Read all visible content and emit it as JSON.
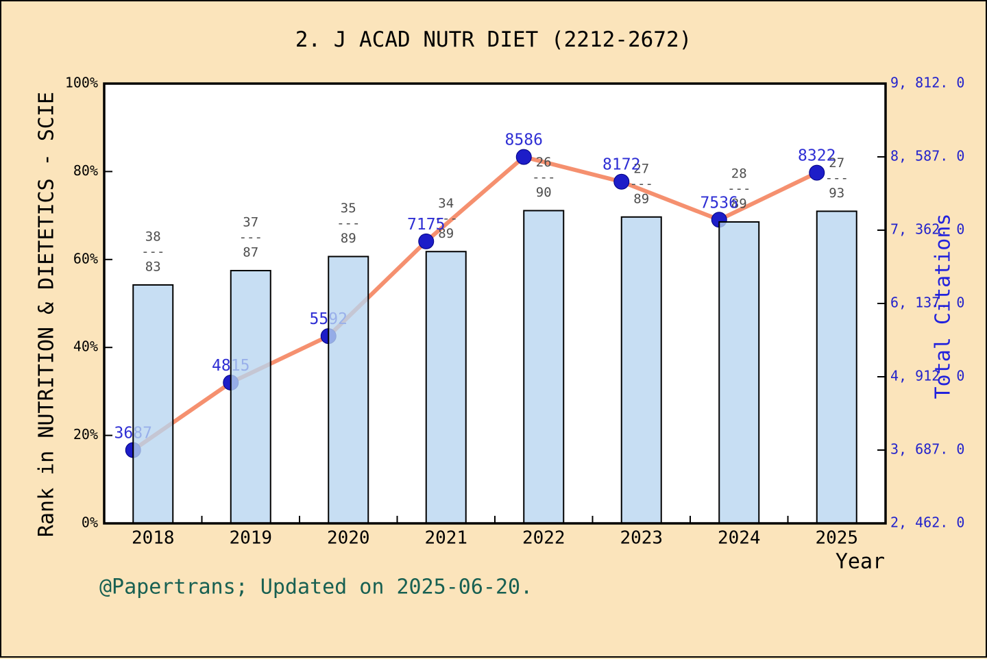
{
  "title": "2. J ACAD NUTR DIET (2212-2672)",
  "footer": "@Papertrans; Updated on 2025-06-20.",
  "colors": {
    "background": "#FBE4BB",
    "plot_background": "#FFFFFF",
    "bar_fill_solid": "#C9E0F4",
    "bar_fill_rgba": "rgba(183,213,240,0.78)",
    "bar_border": "#000000",
    "line": "#F5906F",
    "marker": "#1D1DC8",
    "value_label": "#2E2ED4",
    "fraction_label": "#4D4D4D",
    "right_axis_text": "#2222CC",
    "footer_text": "#186052"
  },
  "chart_data": {
    "type": "bar",
    "title": "2. J ACAD NUTR DIET (2212-2672)",
    "xlabel": "Year",
    "categories": [
      "2018",
      "2019",
      "2020",
      "2021",
      "2022",
      "2023",
      "2024",
      "2025"
    ],
    "series": [
      {
        "name": "Rank in NUTRITION & DIETETICS - SCIE",
        "type": "bar",
        "axis": "left",
        "rank": [
          38,
          37,
          35,
          34,
          26,
          27,
          28,
          27
        ],
        "total_in_category": [
          83,
          87,
          89,
          89,
          90,
          89,
          89,
          93
        ],
        "fraction_labels": [
          "38/83",
          "37/87",
          "35/89",
          "34/89",
          "26/90",
          "27/89",
          "28/89",
          "27/93"
        ],
        "fraction_separator": "---",
        "bar_height_pct": [
          54.2,
          57.5,
          60.7,
          61.8,
          71.1,
          69.7,
          68.5,
          71.0
        ]
      },
      {
        "name": "Total Citations",
        "type": "line",
        "axis": "right",
        "values": [
          3687,
          4815,
          5592,
          7175,
          8586,
          8172,
          7536,
          8322
        ]
      }
    ],
    "left_axis": {
      "label": "Rank in NUTRITION & DIETETICS - SCIE",
      "ticks": [
        "0%",
        "20%",
        "40%",
        "60%",
        "80%",
        "100%"
      ],
      "tick_pcts": [
        0,
        20,
        40,
        60,
        80,
        100
      ],
      "range_pct": [
        0,
        100
      ]
    },
    "right_axis": {
      "label": "Total Citations",
      "tick_labels": [
        "2, 462. 0",
        "3, 687. 0",
        "4, 912. 0",
        "6, 137. 0",
        "7, 362. 0",
        "8, 587. 0",
        "9, 812. 0"
      ],
      "tick_values": [
        2462,
        3687,
        4912,
        6137,
        7362,
        8587,
        9812
      ],
      "range": [
        2462,
        9812
      ]
    },
    "grid": false,
    "legend": false
  }
}
